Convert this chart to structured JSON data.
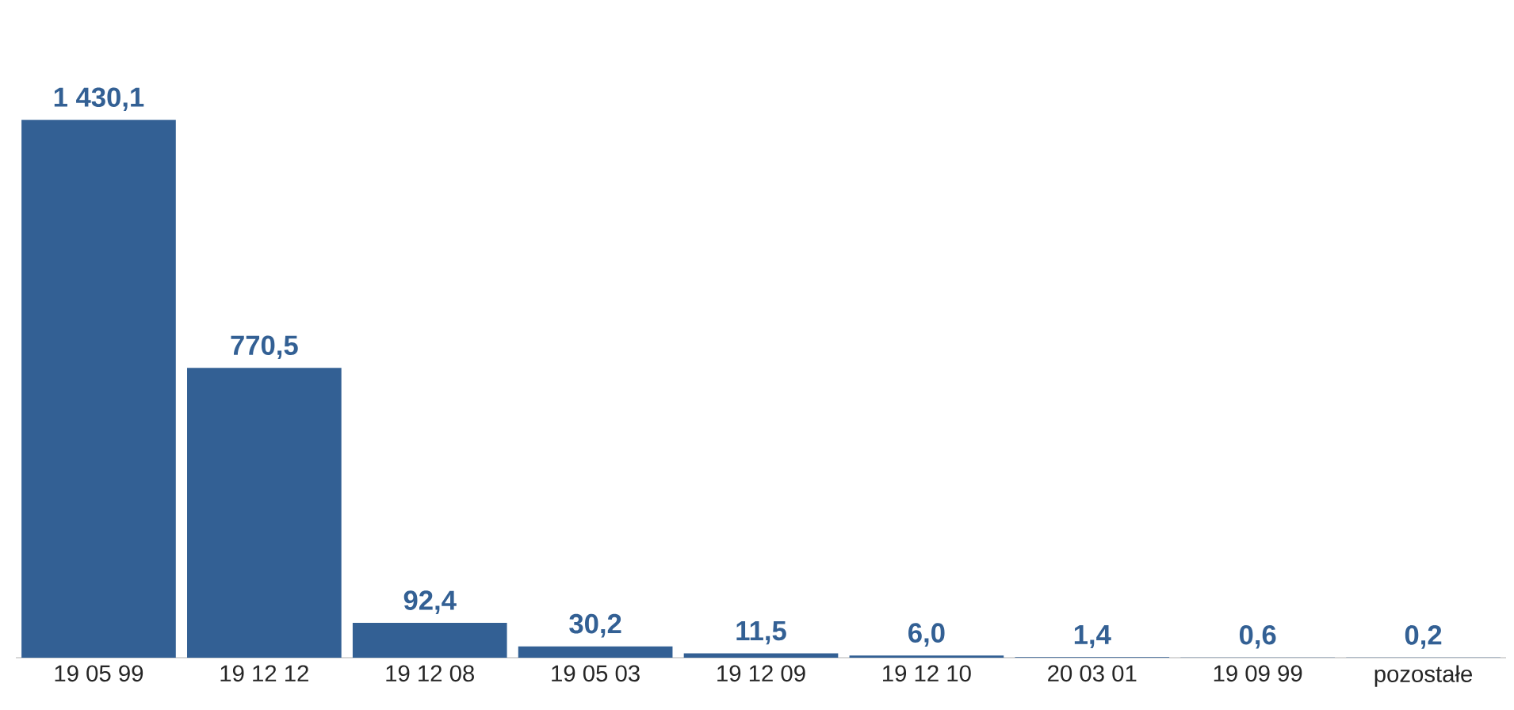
{
  "chart_data": {
    "type": "bar",
    "categories": [
      "19 05 99",
      "19 12 12",
      "19 12 08",
      "19 05 03",
      "19 12 09",
      "19 12 10",
      "20 03 01",
      "19 09 99",
      "pozostałe"
    ],
    "values": [
      1430.1,
      770.5,
      92.4,
      30.2,
      11.5,
      6.0,
      1.4,
      0.6,
      0.2
    ],
    "value_labels": [
      "1 430,1",
      "770,5",
      "92,4",
      "30,2",
      "11,5",
      "6,0",
      "1,4",
      "0,6",
      "0,2"
    ],
    "color": "#336094",
    "tick_labels": "x"
  }
}
